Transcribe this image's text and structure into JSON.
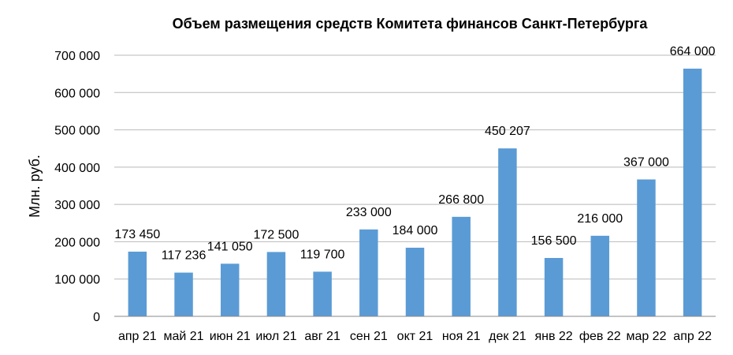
{
  "chart_data": {
    "type": "bar",
    "title": "Объем размещения  средств Комитета финансов Санкт-Петербурга",
    "xlabel": "",
    "ylabel": "Млн. руб.",
    "ylim": [
      0,
      700000
    ],
    "yticks": [
      0,
      100000,
      200000,
      300000,
      400000,
      500000,
      600000,
      700000
    ],
    "ytick_labels": [
      "0",
      "100 000",
      "200 000",
      "300 000",
      "400 000",
      "500 000",
      "600 000",
      "700 000"
    ],
    "grid": true,
    "bar_color": "#5b9bd5",
    "categories": [
      "апр 21",
      "май 21",
      "июн 21",
      "июл 21",
      "авг 21",
      "сен 21",
      "окт 21",
      "ноя 21",
      "дек 21",
      "янв 22",
      "фев 22",
      "мар 22",
      "апр 22"
    ],
    "values": [
      173450,
      117236,
      141050,
      172500,
      119700,
      233000,
      184000,
      266800,
      450207,
      156500,
      216000,
      367000,
      664000
    ],
    "data_labels": [
      "173 450",
      "117 236",
      "141 050",
      "172 500",
      "119 700",
      "233 000",
      "184 000",
      "266 800",
      "450 207",
      "156 500",
      "216 000",
      "367 000",
      "664 000"
    ]
  }
}
